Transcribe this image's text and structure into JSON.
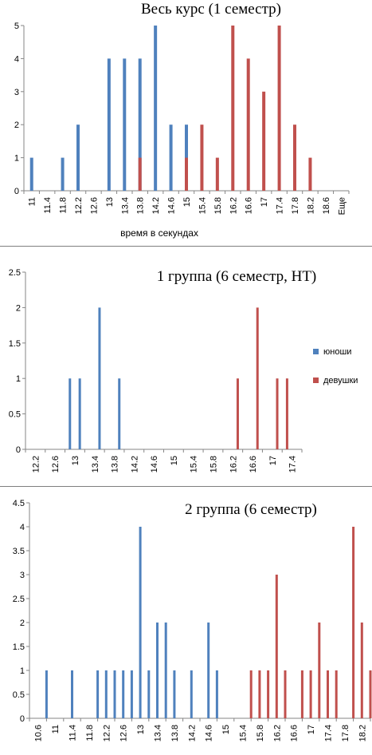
{
  "colors": {
    "boys": "#4f81bd",
    "girls": "#c0504d",
    "axis": "#868686",
    "text": "#000000"
  },
  "chart_data": [
    {
      "type": "bar",
      "title": "Весь курс (1 семестр)",
      "xlabel": "время в секундах",
      "ylabel": "",
      "ylim": [
        0,
        5
      ],
      "yticks": [
        "0",
        "1",
        "2",
        "3",
        "4",
        "5"
      ],
      "categories": [
        "11",
        "11.4",
        "11.8",
        "12.2",
        "12.6",
        "13",
        "13.4",
        "13.8",
        "14.2",
        "14.6",
        "15",
        "15.4",
        "15.8",
        "16.2",
        "16.6",
        "17",
        "17.4",
        "17.8",
        "18.2",
        "18.6",
        "Еще"
      ],
      "series": [
        {
          "values": [
            {
              "x": 11.0,
              "y": 1
            },
            {
              "x": 11.8,
              "y": 1
            },
            {
              "x": 12.2,
              "y": 2
            },
            {
              "x": 13.0,
              "y": 4
            },
            {
              "x": 13.4,
              "y": 4
            },
            {
              "x": 13.8,
              "y": 4
            },
            {
              "x": 14.2,
              "y": 5
            },
            {
              "x": 14.6,
              "y": 2
            },
            {
              "x": 15.0,
              "y": 2
            }
          ]
        },
        {
          "values": [
            {
              "x": 13.8,
              "y": 1
            },
            {
              "x": 15.0,
              "y": 1
            },
            {
              "x": 15.4,
              "y": 2
            },
            {
              "x": 15.8,
              "y": 1
            },
            {
              "x": 16.2,
              "y": 5
            },
            {
              "x": 16.6,
              "y": 4
            },
            {
              "x": 17.0,
              "y": 3
            },
            {
              "x": 17.4,
              "y": 5
            },
            {
              "x": 17.8,
              "y": 2
            },
            {
              "x": 18.2,
              "y": 1
            }
          ]
        }
      ],
      "grid": false
    },
    {
      "type": "bar",
      "title": "1 группа (6 семестр, НТ)",
      "xlabel": "",
      "ylabel": "",
      "ylim": [
        0,
        2.5
      ],
      "yticks": [
        "0",
        "0.5",
        "1",
        "1.5",
        "2",
        "2.5"
      ],
      "categories": [
        "12.2",
        "12.6",
        "13",
        "13.4",
        "13.8",
        "14.2",
        "14.6",
        "15",
        "15.4",
        "15.8",
        "16.2",
        "16.6",
        "17",
        "17.4"
      ],
      "series": [
        {
          "name": "юноши",
          "values": [
            {
              "x": 12.9,
              "y": 1
            },
            {
              "x": 13.1,
              "y": 1
            },
            {
              "x": 13.5,
              "y": 2
            },
            {
              "x": 13.9,
              "y": 1
            }
          ]
        },
        {
          "name": "девушки",
          "values": [
            {
              "x": 16.3,
              "y": 1
            },
            {
              "x": 16.7,
              "y": 2
            },
            {
              "x": 17.1,
              "y": 1
            },
            {
              "x": 17.3,
              "y": 1
            }
          ]
        }
      ],
      "legend": "right",
      "grid": false
    },
    {
      "type": "bar",
      "title": "2 группа (6 семестр)",
      "xlabel": "",
      "ylabel": "",
      "ylim": [
        0,
        4.5
      ],
      "yticks": [
        "0",
        "0.5",
        "1",
        "1.5",
        "2",
        "2.5",
        "3",
        "3.5",
        "4",
        "4.5"
      ],
      "categories": [
        "10.6",
        "11",
        "11.4",
        "11.8",
        "12.2",
        "12.6",
        "13",
        "13.4",
        "13.8",
        "14.2",
        "14.6",
        "15",
        "15.4",
        "15.8",
        "16.2",
        "16.6",
        "17",
        "17.4",
        "17.8",
        "18.2"
      ],
      "series": [
        {
          "values": [
            {
              "x": 10.8,
              "y": 1
            },
            {
              "x": 11.4,
              "y": 1
            },
            {
              "x": 12.0,
              "y": 1
            },
            {
              "x": 12.2,
              "y": 1
            },
            {
              "x": 12.4,
              "y": 1
            },
            {
              "x": 12.6,
              "y": 1
            },
            {
              "x": 12.8,
              "y": 1
            },
            {
              "x": 13.0,
              "y": 4
            },
            {
              "x": 13.2,
              "y": 1
            },
            {
              "x": 13.4,
              "y": 2
            },
            {
              "x": 13.6,
              "y": 2
            },
            {
              "x": 13.8,
              "y": 1
            },
            {
              "x": 14.2,
              "y": 1
            },
            {
              "x": 14.6,
              "y": 2
            },
            {
              "x": 14.8,
              "y": 1
            }
          ]
        },
        {
          "values": [
            {
              "x": 15.6,
              "y": 1
            },
            {
              "x": 15.8,
              "y": 1
            },
            {
              "x": 16.0,
              "y": 1
            },
            {
              "x": 16.2,
              "y": 3
            },
            {
              "x": 16.4,
              "y": 1
            },
            {
              "x": 16.8,
              "y": 1
            },
            {
              "x": 17.0,
              "y": 1
            },
            {
              "x": 17.2,
              "y": 2
            },
            {
              "x": 17.4,
              "y": 1
            },
            {
              "x": 17.6,
              "y": 1
            },
            {
              "x": 18.0,
              "y": 4
            },
            {
              "x": 18.2,
              "y": 2
            },
            {
              "x": 18.4,
              "y": 1
            }
          ]
        }
      ],
      "grid": false
    }
  ]
}
